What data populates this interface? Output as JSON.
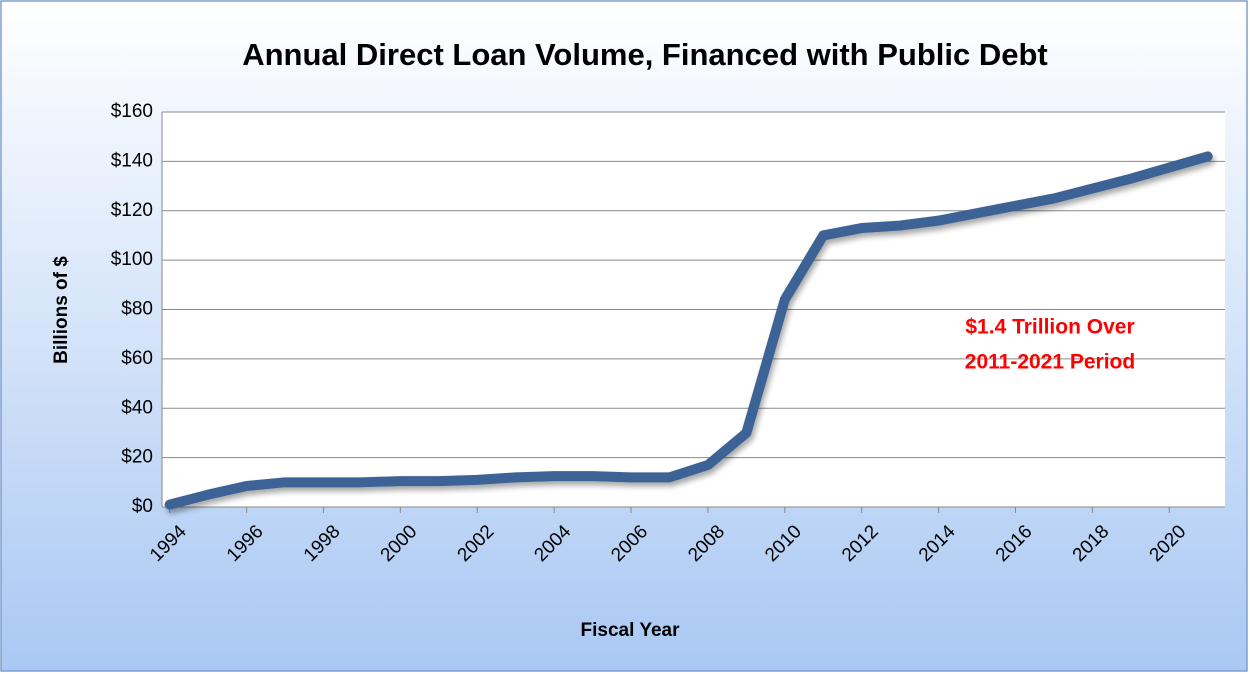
{
  "chart_data": {
    "type": "line",
    "title": "Annual Direct Loan Volume, Financed with Public Debt",
    "x_label": "Fiscal Year",
    "y_label": "Billions of $",
    "annotation": [
      "$1.4 Trillion Over",
      "2011-2021 Period"
    ],
    "annotation_color": "#ff0000",
    "x": [
      1994,
      1995,
      1996,
      1997,
      1998,
      1999,
      2000,
      2001,
      2002,
      2003,
      2004,
      2005,
      2006,
      2007,
      2008,
      2009,
      2010,
      2011,
      2012,
      2013,
      2014,
      2015,
      2016,
      2017,
      2018,
      2019,
      2020,
      2021
    ],
    "series": [
      {
        "name": "Direct Loan Volume",
        "color": "#3d6496",
        "values": [
          1,
          5,
          8.5,
          10,
          10,
          10,
          10.5,
          10.5,
          11,
          12,
          12.5,
          12.5,
          12,
          12,
          17,
          30,
          84,
          110,
          113,
          114,
          116,
          119,
          122,
          125,
          129,
          133,
          137.5,
          142
        ]
      }
    ],
    "xlim": [
      1993.8,
      2021.45
    ],
    "xticks": [
      1994,
      1996,
      1998,
      2000,
      2002,
      2004,
      2006,
      2008,
      2010,
      2012,
      2014,
      2016,
      2018,
      2020
    ],
    "ylim": [
      0,
      160
    ],
    "yticks": [
      {
        "value": 0,
        "label": "$0"
      },
      {
        "value": 20,
        "label": "$20"
      },
      {
        "value": 40,
        "label": "$40"
      },
      {
        "value": 60,
        "label": "$60"
      },
      {
        "value": 80,
        "label": "$80"
      },
      {
        "value": 100,
        "label": "$100"
      },
      {
        "value": 120,
        "label": "$120"
      },
      {
        "value": 140,
        "label": "$140"
      },
      {
        "value": 160,
        "label": "$160"
      }
    ],
    "grid": true,
    "legend": false
  }
}
